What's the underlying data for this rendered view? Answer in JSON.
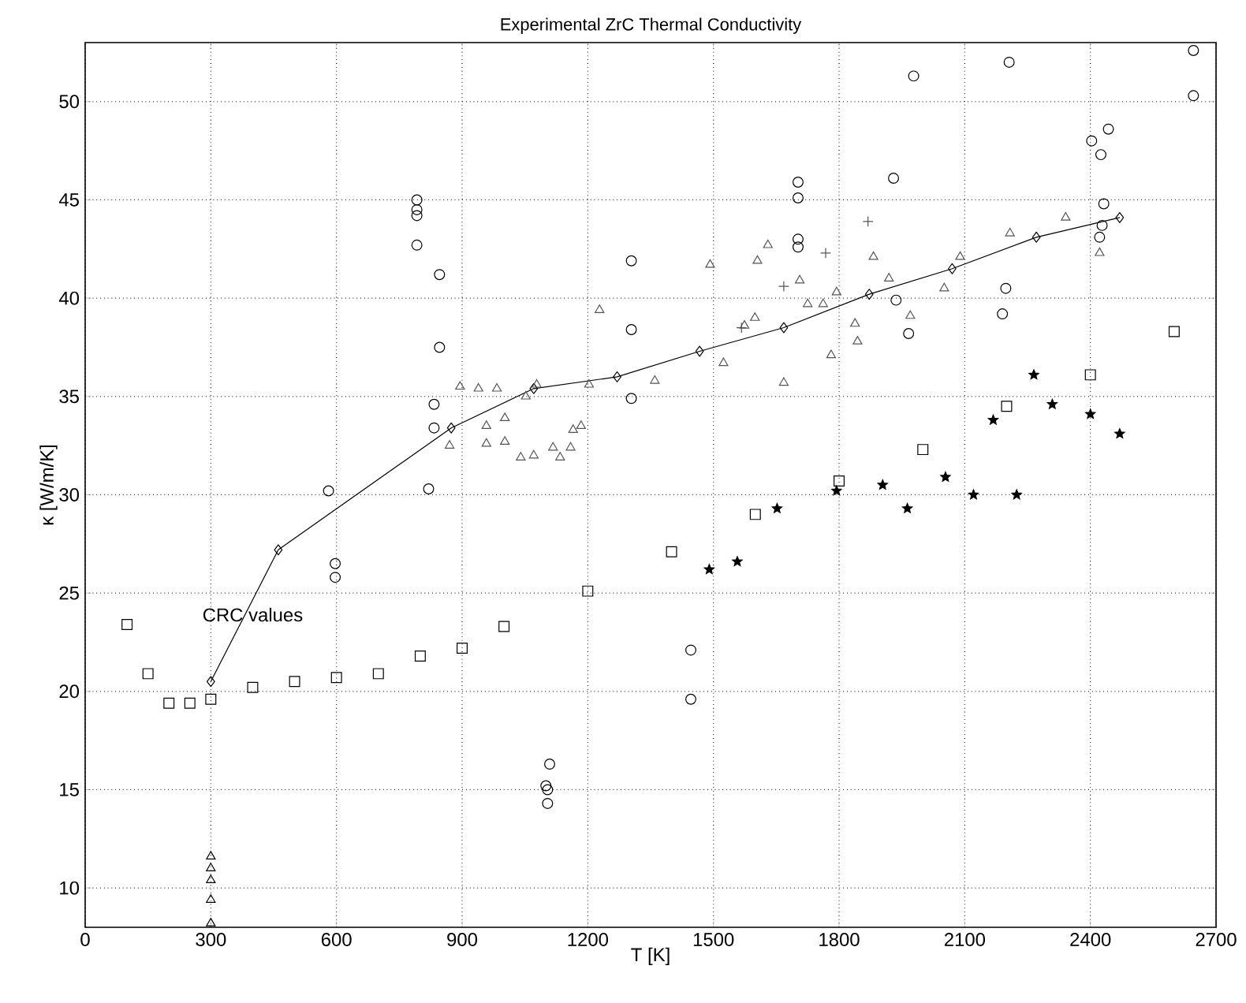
{
  "chart_data": {
    "type": "scatter",
    "title": "Experimental ZrC Thermal Conductivity",
    "xlabel": "T [K]",
    "ylabel": "κ [W/m/K]",
    "xlim": [
      0,
      2700
    ],
    "xticks": [
      0,
      300,
      600,
      900,
      1200,
      1500,
      1800,
      2100,
      2400,
      2700
    ],
    "ylim": [
      8,
      53
    ],
    "yticks": [
      10,
      15,
      20,
      25,
      30,
      35,
      40,
      45,
      50
    ],
    "grid": true,
    "annotations": [
      {
        "text": "CRC values",
        "x": 400,
        "y": 23.9
      }
    ],
    "series": [
      {
        "marker": "square",
        "color": "#000000",
        "x": [
          100,
          150,
          200,
          250,
          300,
          400,
          500,
          600,
          700,
          800,
          900,
          1000,
          1200,
          1400,
          1600,
          1800,
          2000,
          2200,
          2400,
          2600
        ],
        "values": [
          23.4,
          20.9,
          19.4,
          19.4,
          19.6,
          20.2,
          20.5,
          20.7,
          20.9,
          21.8,
          22.2,
          23.3,
          25.1,
          27.1,
          29.0,
          30.7,
          32.3,
          34.5,
          36.1,
          38.3
        ]
      },
      {
        "marker": "star",
        "color": "#000000",
        "x": [
          1490,
          1557,
          1652,
          1794,
          1904,
          1963,
          2054,
          2121,
          2224,
          2168,
          2265,
          2309,
          2400,
          2470
        ],
        "values": [
          26.2,
          26.6,
          29.3,
          30.2,
          30.5,
          29.3,
          30.9,
          30.0,
          30.0,
          33.8,
          36.1,
          34.6,
          34.1,
          33.1
        ]
      },
      {
        "type": "line",
        "marker": "diamond",
        "color": "#000000",
        "x": [
          300,
          461,
          874,
          1071,
          1270,
          1467,
          1668,
          1872,
          2070,
          2271,
          2470
        ],
        "values": [
          20.5,
          27.2,
          33.4,
          35.4,
          36.0,
          37.3,
          38.5,
          40.2,
          41.5,
          43.1,
          44.1
        ]
      },
      {
        "marker": "triangle",
        "color": "#000000",
        "x": [
          300,
          300,
          300,
          300,
          300
        ],
        "values": [
          11.6,
          11.0,
          10.4,
          9.4,
          8.2
        ]
      },
      {
        "marker": "circle",
        "color": "#000000",
        "x": [
          792,
          792,
          792,
          792,
          846,
          846,
          833,
          833,
          820,
          581,
          597,
          597,
          1109,
          1100,
          1104,
          1104,
          1446,
          1446,
          1304,
          1304,
          1304,
          1702,
          1702,
          1702,
          1702,
          1930,
          1936,
          1966,
          1978,
          2206,
          2198,
          2190,
          2403,
          2443,
          2425,
          2432,
          2428,
          2422,
          2646,
          2646
        ],
        "values": [
          45.0,
          44.5,
          44.2,
          42.7,
          41.2,
          37.5,
          34.6,
          33.4,
          30.3,
          30.2,
          26.5,
          25.8,
          16.3,
          15.2,
          15.0,
          14.3,
          22.1,
          19.6,
          41.9,
          38.4,
          34.9,
          45.9,
          45.1,
          43.0,
          42.6,
          46.1,
          39.9,
          38.2,
          51.3,
          52.0,
          40.5,
          39.2,
          48.0,
          48.6,
          47.3,
          44.8,
          43.7,
          43.1,
          52.6,
          50.3
        ]
      },
      {
        "marker": "triangle",
        "color": "#555555",
        "x": [
          870,
          895,
          939,
          983,
          1052,
          1078,
          958,
          1002,
          958,
          1002,
          1040,
          1071,
          1117,
          1134,
          1159,
          1165,
          1184,
          1203,
          1228,
          1492,
          1524,
          1360,
          1630,
          1605,
          1668,
          1706,
          1599,
          1574,
          1725,
          1762,
          1794,
          1781,
          1838,
          1844,
          1882,
          1919,
          1970,
          2051,
          2089,
          2208,
          2341,
          2422
        ],
        "values": [
          32.5,
          35.5,
          35.4,
          35.4,
          35.0,
          35.6,
          33.5,
          33.9,
          32.6,
          32.7,
          31.9,
          32.0,
          32.4,
          31.9,
          32.4,
          33.3,
          33.5,
          35.6,
          39.4,
          41.7,
          36.7,
          35.8,
          42.7,
          41.9,
          35.7,
          40.9,
          39.0,
          38.6,
          39.7,
          39.7,
          40.3,
          37.1,
          38.7,
          37.8,
          42.1,
          41.0,
          39.1,
          40.5,
          42.1,
          43.3,
          44.1,
          42.3
        ]
      },
      {
        "marker": "cross",
        "color": "#555555",
        "x": [
          1869,
          1768,
          1668,
          1567
        ],
        "values": [
          43.9,
          42.3,
          40.6,
          38.5
        ]
      }
    ]
  }
}
